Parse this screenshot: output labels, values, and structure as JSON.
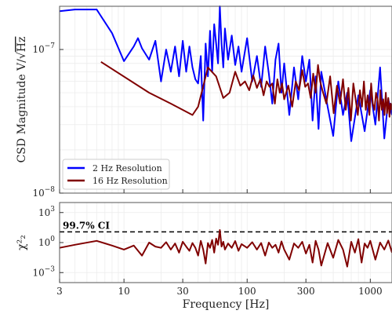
{
  "chart_data": [
    {
      "type": "line",
      "panel": "top",
      "title": "",
      "xlabel": "",
      "ylabel": "CSD Magnitude V/√Hz",
      "xscale": "log",
      "yscale": "log",
      "xlim": [
        3,
        1500
      ],
      "ylim": [
        1e-08,
        2e-07
      ],
      "grid": true,
      "legend_position": "lower-left",
      "yticks": [
        {
          "value": 1e-07,
          "label": "10",
          "exp": "−7"
        },
        {
          "value": 1e-08,
          "label": "10",
          "exp": "−8"
        }
      ],
      "series": [
        {
          "name": "2 Hz Resolution",
          "color": "#0000ff",
          "x": [
            3,
            4,
            6,
            8,
            10,
            12,
            13,
            14,
            16,
            18,
            20,
            22,
            24,
            26,
            28,
            30,
            32,
            34,
            36,
            38,
            40,
            42,
            44,
            46,
            48,
            50,
            52,
            54,
            56,
            58,
            60,
            62,
            64,
            66,
            70,
            75,
            80,
            85,
            90,
            100,
            110,
            120,
            130,
            140,
            150,
            160,
            170,
            180,
            190,
            200,
            220,
            240,
            260,
            280,
            300,
            320,
            340,
            360,
            380,
            400,
            450,
            500,
            550,
            600,
            650,
            700,
            800,
            900,
            1000,
            1100,
            1200,
            1300,
            1400,
            1500
          ],
          "y": [
            1.85e-07,
            1.9e-07,
            1.9e-07,
            1.3e-07,
            8.3e-08,
            1.05e-07,
            1.2e-07,
            1.02e-07,
            8.5e-08,
            1.15e-07,
            6e-08,
            1e-07,
            7e-08,
            1.05e-07,
            6.5e-08,
            1.15e-07,
            7e-08,
            1.05e-07,
            7.5e-08,
            6.2e-08,
            5.8e-08,
            9e-08,
            3.2e-08,
            1.1e-07,
            6.5e-08,
            1.35e-07,
            7e-08,
            1.5e-07,
            1.1e-07,
            8e-08,
            2e-07,
            1.1e-07,
            7.5e-08,
            1.4e-07,
            8.5e-08,
            1.25e-07,
            7.8e-08,
            1.05e-07,
            7e-08,
            1.2e-07,
            6e-08,
            9e-08,
            5.5e-08,
            1.05e-07,
            6.8e-08,
            4.2e-08,
            8.5e-08,
            1.1e-07,
            5e-08,
            8e-08,
            3.5e-08,
            7.5e-08,
            4.5e-08,
            9e-08,
            6e-08,
            8.5e-08,
            3.2e-08,
            6.5e-08,
            2.8e-08,
            7e-08,
            4e-08,
            2.5e-08,
            6e-08,
            3.5e-08,
            5e-08,
            2.3e-08,
            4.8e-08,
            2.7e-08,
            5.2e-08,
            3e-08,
            7.5e-08,
            2.4e-08,
            4.5e-08,
            3.5e-08
          ]
        },
        {
          "name": "16 Hz Resolution",
          "color": "#800000",
          "x": [
            6.5,
            16,
            24,
            36,
            40,
            48,
            56,
            64,
            72,
            80,
            88,
            96,
            104,
            112,
            120,
            128,
            136,
            144,
            152,
            160,
            168,
            176,
            184,
            192,
            200,
            216,
            232,
            248,
            264,
            280,
            296,
            312,
            328,
            344,
            360,
            376,
            392,
            408,
            440,
            472,
            504,
            536,
            568,
            600,
            632,
            664,
            696,
            728,
            760,
            792,
            824,
            856,
            888,
            920,
            952,
            984,
            1016,
            1048,
            1080,
            1112,
            1144,
            1176,
            1208,
            1240,
            1272,
            1304,
            1336,
            1368,
            1400,
            1432,
            1464,
            1496
          ],
          "y": [
            8.2e-08,
            5e-08,
            4.2e-08,
            3.5e-08,
            4e-08,
            7.5e-08,
            6.5e-08,
            4.6e-08,
            5e-08,
            7e-08,
            5.6e-08,
            6e-08,
            5.2e-08,
            6.6e-08,
            5.4e-08,
            6.2e-08,
            4.8e-08,
            6e-08,
            5.5e-08,
            5.8e-08,
            4.2e-08,
            6.2e-08,
            5e-08,
            5.8e-08,
            4.5e-08,
            5.6e-08,
            4e-08,
            6e-08,
            5.2e-08,
            7.2e-08,
            5.5e-08,
            5.8e-08,
            4.6e-08,
            6.8e-08,
            5e-08,
            7.8e-08,
            6e-08,
            5.2e-08,
            4.2e-08,
            6.5e-08,
            3.6e-08,
            5.6e-08,
            4.2e-08,
            6.2e-08,
            3.8e-08,
            5.4e-08,
            3.2e-08,
            5.8e-08,
            4.5e-08,
            3.5e-08,
            5.2e-08,
            4e-08,
            6e-08,
            3.8e-08,
            4.8e-08,
            3.5e-08,
            5.8e-08,
            4.2e-08,
            3.8e-08,
            5e-08,
            4.5e-08,
            3.2e-08,
            5.2e-08,
            3.8e-08,
            4.5e-08,
            3.5e-08,
            5e-08,
            3.6e-08,
            4.6e-08,
            3.4e-08,
            4.2e-08,
            3.8e-08
          ]
        }
      ]
    },
    {
      "type": "line",
      "panel": "bottom",
      "title": "",
      "xlabel": "Frequency [Hz]",
      "ylabel": "χ²₂",
      "xscale": "log",
      "yscale": "log",
      "xlim": [
        3,
        1500
      ],
      "ylim": [
        0.0001,
        10000
      ],
      "grid": true,
      "yticks": [
        {
          "value": 1000,
          "label": "10",
          "exp": "3"
        },
        {
          "value": 1,
          "label": "10",
          "exp": "0"
        },
        {
          "value": 0.001,
          "label": "10",
          "exp": "−3"
        }
      ],
      "xticks": [
        {
          "value": 3,
          "label": "3"
        },
        {
          "value": 10,
          "label": "10"
        },
        {
          "value": 30,
          "label": "30"
        },
        {
          "value": 100,
          "label": "100"
        },
        {
          "value": 300,
          "label": "300"
        },
        {
          "value": 1000,
          "label": "1000"
        }
      ],
      "annotation": {
        "text": "99.7% CI",
        "value": 11.8
      },
      "series": [
        {
          "color": "#800000",
          "x": [
            3,
            4,
            6,
            8,
            10,
            12,
            14,
            16,
            18,
            20,
            22,
            24,
            26,
            28,
            30,
            32,
            34,
            36,
            38,
            40,
            42,
            44,
            46,
            48,
            50,
            52,
            54,
            56,
            58,
            60,
            62,
            64,
            66,
            70,
            75,
            80,
            85,
            90,
            100,
            110,
            120,
            130,
            140,
            150,
            160,
            170,
            180,
            190,
            200,
            220,
            240,
            260,
            280,
            300,
            320,
            340,
            360,
            380,
            400,
            450,
            500,
            550,
            600,
            650,
            700,
            750,
            800,
            850,
            900,
            950,
            1000,
            1100,
            1200,
            1300,
            1400,
            1500
          ],
          "y": [
            0.3,
            0.6,
            1.5,
            0.5,
            0.2,
            0.5,
            0.05,
            1.0,
            0.4,
            0.3,
            1.1,
            0.2,
            0.8,
            0.1,
            1.2,
            0.4,
            0.15,
            0.9,
            0.3,
            0.05,
            1.5,
            0.2,
            0.008,
            0.9,
            0.3,
            1.8,
            0.1,
            2.5,
            0.6,
            18,
            0.4,
            1.2,
            0.2,
            0.8,
            0.3,
            1.4,
            0.15,
            0.7,
            0.3,
            1.1,
            0.2,
            0.9,
            0.05,
            1.0,
            0.3,
            0.6,
            0.1,
            1.3,
            0.2,
            0.02,
            0.8,
            0.3,
            1.2,
            0.08,
            0.6,
            0.01,
            1.5,
            0.2,
            0.005,
            0.9,
            0.03,
            1.8,
            0.2,
            0.004,
            1.2,
            0.1,
            2.2,
            0.01,
            0.8,
            0.3,
            1.5,
            0.02,
            1.0,
            0.2,
            1.6,
            0.1
          ]
        }
      ]
    }
  ]
}
